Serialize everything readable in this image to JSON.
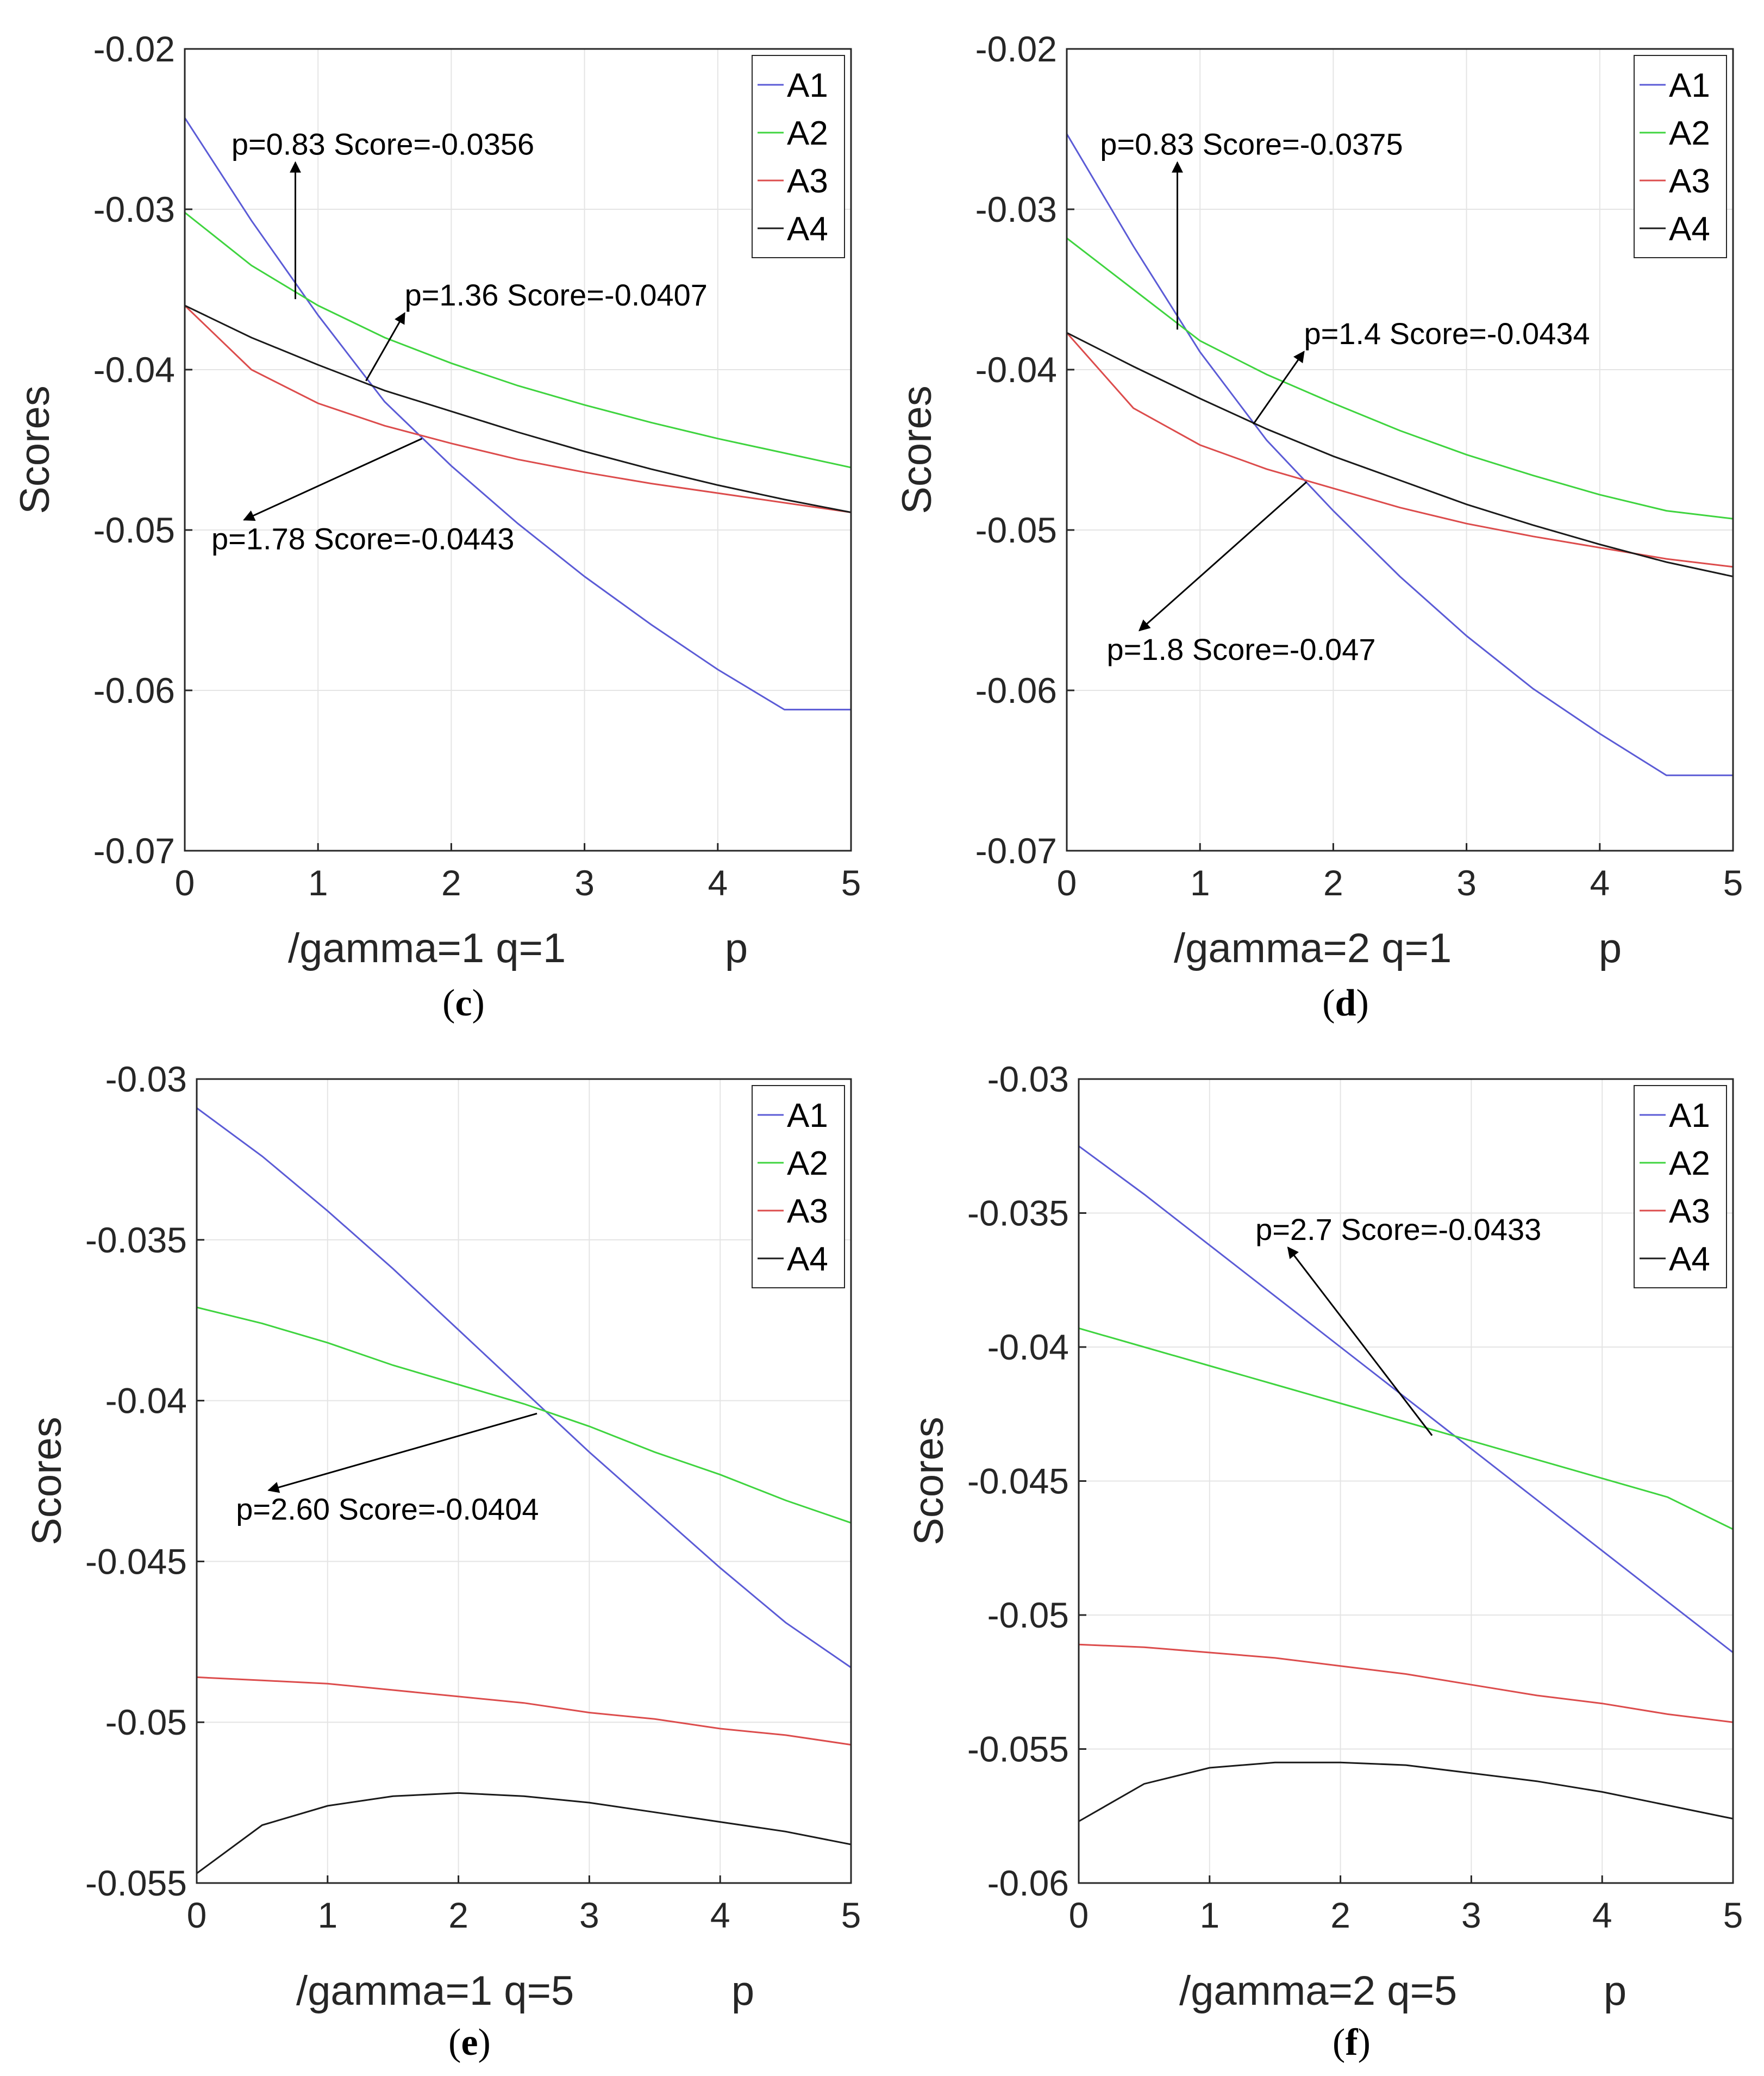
{
  "chart_data": [
    {
      "type": "line",
      "panel": "c",
      "caption_open": "(",
      "caption_letter": "c",
      "caption_close": ")",
      "xlabel_left": "/gamma=1 q=1",
      "xlabel_right": "p",
      "ylabel": "Scores",
      "xlim": [
        0,
        5
      ],
      "ylim": [
        -0.07,
        -0.02
      ],
      "xticks": [
        0,
        1,
        2,
        3,
        4,
        5
      ],
      "xtick_labels": [
        "0",
        "1",
        "2",
        "3",
        "4",
        "5"
      ],
      "yticks": [
        -0.07,
        -0.06,
        -0.05,
        -0.04,
        -0.03,
        -0.02
      ],
      "ytick_labels": [
        "-0.07",
        "-0.06",
        "-0.05",
        "-0.04",
        "-0.03",
        "-0.02"
      ],
      "grid": true,
      "legend_position": "top-right",
      "x": [
        0,
        0.5,
        1,
        1.5,
        2,
        2.5,
        3,
        3.5,
        4,
        4.5,
        5
      ],
      "series": [
        {
          "name": "A1",
          "color": "#5b5bd6",
          "values": [
            -0.0243,
            -0.0307,
            -0.0366,
            -0.042,
            -0.046,
            -0.0496,
            -0.0529,
            -0.0559,
            -0.0587,
            -0.0612,
            -0.0612
          ]
        },
        {
          "name": "A2",
          "color": "#3fd43f",
          "values": [
            -0.0302,
            -0.0335,
            -0.036,
            -0.038,
            -0.0396,
            -0.041,
            -0.0422,
            -0.0433,
            -0.0443,
            -0.0452,
            -0.0461
          ]
        },
        {
          "name": "A3",
          "color": "#dc4c4c",
          "values": [
            -0.036,
            -0.04,
            -0.0421,
            -0.0435,
            -0.0446,
            -0.0456,
            -0.0464,
            -0.0471,
            -0.0477,
            -0.0483,
            -0.0489
          ]
        },
        {
          "name": "A4",
          "color": "#1a1a1a",
          "values": [
            -0.036,
            -0.038,
            -0.0397,
            -0.0413,
            -0.0426,
            -0.0439,
            -0.0451,
            -0.0462,
            -0.0472,
            -0.0481,
            -0.0489
          ]
        }
      ],
      "annotations": [
        {
          "text": "p=0.83 Score=-0.0356",
          "x": 0.83,
          "y": -0.0356,
          "tx": 0.35,
          "ty": -0.0266
        },
        {
          "text": "p=1.36 Score=-0.0407",
          "x": 1.36,
          "y": -0.0407,
          "tx": 1.65,
          "ty": -0.036
        },
        {
          "text": "p=1.78 Score=-0.0443",
          "x": 1.78,
          "y": -0.0443,
          "tx": 0.2,
          "ty": -0.0512
        }
      ]
    },
    {
      "type": "line",
      "panel": "d",
      "caption_open": "(",
      "caption_letter": "d",
      "caption_close": ")",
      "xlabel_left": "/gamma=2 q=1",
      "xlabel_right": "p",
      "ylabel": "Scores",
      "xlim": [
        0,
        5
      ],
      "ylim": [
        -0.07,
        -0.02
      ],
      "xticks": [
        0,
        1,
        2,
        3,
        4,
        5
      ],
      "xtick_labels": [
        "0",
        "1",
        "2",
        "3",
        "4",
        "5"
      ],
      "yticks": [
        -0.07,
        -0.06,
        -0.05,
        -0.04,
        -0.03,
        -0.02
      ],
      "ytick_labels": [
        "-0.07",
        "-0.06",
        "-0.05",
        "-0.04",
        "-0.03",
        "-0.02"
      ],
      "grid": true,
      "legend_position": "top-right",
      "x": [
        0,
        0.5,
        1,
        1.5,
        2,
        2.5,
        3,
        3.5,
        4,
        4.5,
        5
      ],
      "series": [
        {
          "name": "A1",
          "color": "#5b5bd6",
          "values": [
            -0.0253,
            -0.0323,
            -0.0389,
            -0.0444,
            -0.0488,
            -0.0529,
            -0.0566,
            -0.0599,
            -0.0627,
            -0.0653,
            -0.0653
          ]
        },
        {
          "name": "A2",
          "color": "#3fd43f",
          "values": [
            -0.0318,
            -0.035,
            -0.0382,
            -0.0403,
            -0.0421,
            -0.0438,
            -0.0453,
            -0.0466,
            -0.0478,
            -0.0488,
            -0.0493
          ]
        },
        {
          "name": "A3",
          "color": "#dc4c4c",
          "values": [
            -0.0377,
            -0.0424,
            -0.0447,
            -0.0462,
            -0.0474,
            -0.0486,
            -0.0496,
            -0.0504,
            -0.0511,
            -0.0518,
            -0.0523
          ]
        },
        {
          "name": "A4",
          "color": "#1a1a1a",
          "values": [
            -0.0377,
            -0.0398,
            -0.0418,
            -0.0437,
            -0.0454,
            -0.0469,
            -0.0484,
            -0.0497,
            -0.0509,
            -0.052,
            -0.0529
          ]
        }
      ],
      "annotations": [
        {
          "text": "p=0.83 Score=-0.0375",
          "x": 0.83,
          "y": -0.0375,
          "tx": 0.25,
          "ty": -0.0266
        },
        {
          "text": "p=1.4 Score=-0.0434",
          "x": 1.4,
          "y": -0.0434,
          "tx": 1.78,
          "ty": -0.0384
        },
        {
          "text": "p=1.8 Score=-0.047",
          "x": 1.8,
          "y": -0.047,
          "tx": 0.3,
          "ty": -0.0581
        }
      ]
    },
    {
      "type": "line",
      "panel": "e",
      "caption_open": "(",
      "caption_letter": "e",
      "caption_close": ")",
      "xlabel_left": "/gamma=1 q=5",
      "xlabel_right": "p",
      "ylabel": "Scores",
      "xlim": [
        0,
        5
      ],
      "ylim": [
        -0.055,
        -0.03
      ],
      "xticks": [
        0,
        1,
        2,
        3,
        4,
        5
      ],
      "xtick_labels": [
        "0",
        "1",
        "2",
        "3",
        "4",
        "5"
      ],
      "yticks": [
        -0.055,
        -0.05,
        -0.045,
        -0.04,
        -0.035,
        -0.03
      ],
      "ytick_labels": [
        "-0.055",
        "-0.05",
        "-0.045",
        "-0.04",
        "-0.035",
        "-0.03"
      ],
      "grid": true,
      "legend_position": "top-right",
      "x": [
        0,
        0.5,
        1,
        1.5,
        2,
        2.5,
        3,
        3.5,
        4,
        4.5,
        5
      ],
      "series": [
        {
          "name": "A1",
          "color": "#5b5bd6",
          "values": [
            -0.0309,
            -0.0324,
            -0.0341,
            -0.0359,
            -0.0378,
            -0.0397,
            -0.0416,
            -0.0434,
            -0.0452,
            -0.0469,
            -0.0483
          ]
        },
        {
          "name": "A2",
          "color": "#3fd43f",
          "values": [
            -0.0371,
            -0.0376,
            -0.0382,
            -0.0389,
            -0.0395,
            -0.0401,
            -0.0408,
            -0.0416,
            -0.0423,
            -0.0431,
            -0.0438
          ]
        },
        {
          "name": "A3",
          "color": "#dc4c4c",
          "values": [
            -0.0486,
            -0.0487,
            -0.0488,
            -0.049,
            -0.0492,
            -0.0494,
            -0.0497,
            -0.0499,
            -0.0502,
            -0.0504,
            -0.0507
          ]
        },
        {
          "name": "A4",
          "color": "#1a1a1a",
          "values": [
            -0.0547,
            -0.0532,
            -0.0526,
            -0.0523,
            -0.0522,
            -0.0523,
            -0.0525,
            -0.0528,
            -0.0531,
            -0.0534,
            -0.0538
          ]
        }
      ],
      "annotations": [
        {
          "text": "p=2.60 Score=-0.0404",
          "x": 2.6,
          "y": -0.0404,
          "tx": 0.3,
          "ty": -0.0437
        }
      ]
    },
    {
      "type": "line",
      "panel": "f",
      "caption_open": "(",
      "caption_letter": "f",
      "caption_close": ")",
      "xlabel_left": "/gamma=2 q=5",
      "xlabel_right": "p",
      "ylabel": "Scores",
      "xlim": [
        0,
        5
      ],
      "ylim": [
        -0.06,
        -0.03
      ],
      "xticks": [
        0,
        1,
        2,
        3,
        4,
        5
      ],
      "xtick_labels": [
        "0",
        "1",
        "2",
        "3",
        "4",
        "5"
      ],
      "yticks": [
        -0.06,
        -0.055,
        -0.05,
        -0.045,
        -0.04,
        -0.035,
        -0.03
      ],
      "ytick_labels": [
        "-0.06",
        "-0.055",
        "-0.05",
        "-0.045",
        "-0.04",
        "-0.035",
        "-0.03"
      ],
      "grid": true,
      "legend_position": "top-right",
      "x": [
        0,
        0.5,
        1,
        1.5,
        2,
        2.5,
        3,
        3.5,
        4,
        4.5,
        5
      ],
      "series": [
        {
          "name": "A1",
          "color": "#5b5bd6",
          "values": [
            -0.0325,
            -0.0343,
            -0.0362,
            -0.0381,
            -0.04,
            -0.0419,
            -0.0438,
            -0.0457,
            -0.0476,
            -0.0495,
            -0.0514
          ]
        },
        {
          "name": "A2",
          "color": "#3fd43f",
          "values": [
            -0.0393,
            -0.04,
            -0.0407,
            -0.0414,
            -0.0421,
            -0.0428,
            -0.0435,
            -0.0442,
            -0.0449,
            -0.0456,
            -0.0468
          ]
        },
        {
          "name": "A3",
          "color": "#dc4c4c",
          "values": [
            -0.0511,
            -0.0512,
            -0.0514,
            -0.0516,
            -0.0519,
            -0.0522,
            -0.0526,
            -0.053,
            -0.0533,
            -0.0537,
            -0.054
          ]
        },
        {
          "name": "A4",
          "color": "#1a1a1a",
          "values": [
            -0.0577,
            -0.0563,
            -0.0557,
            -0.0555,
            -0.0555,
            -0.0556,
            -0.0559,
            -0.0562,
            -0.0566,
            -0.0571,
            -0.0576
          ]
        }
      ],
      "annotations": [
        {
          "text": "p=2.7 Score=-0.0433",
          "x": 2.7,
          "y": -0.0433,
          "tx": 1.35,
          "ty": -0.036
        }
      ]
    }
  ]
}
